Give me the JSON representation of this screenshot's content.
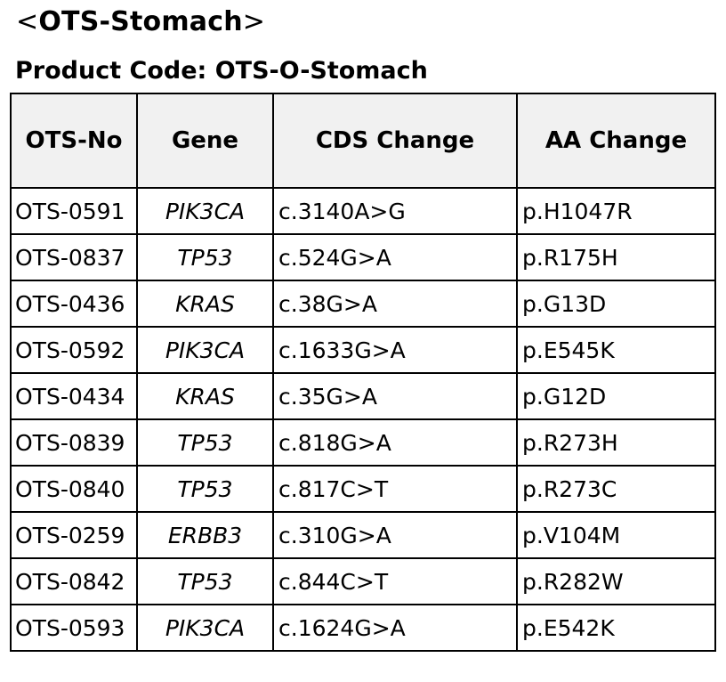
{
  "title": {
    "open_bracket": "<",
    "text": "OTS-Stomach",
    "close_bracket": ">"
  },
  "product_code": "Product Code: OTS-O-Stomach",
  "table": {
    "headers": [
      "OTS-No",
      "Gene",
      "CDS Change",
      "AA Change"
    ],
    "rows": [
      [
        "OTS-0591",
        "PIK3CA",
        "c.3140A>G",
        "p.H1047R"
      ],
      [
        "OTS-0837",
        "TP53",
        "c.524G>A",
        "p.R175H"
      ],
      [
        "OTS-0436",
        "KRAS",
        "c.38G>A",
        "p.G13D"
      ],
      [
        "OTS-0592",
        "PIK3CA",
        "c.1633G>A",
        "p.E545K"
      ],
      [
        "OTS-0434",
        "KRAS",
        "c.35G>A",
        "p.G12D"
      ],
      [
        "OTS-0839",
        "TP53",
        "c.818G>A",
        "p.R273H"
      ],
      [
        "OTS-0840",
        "TP53",
        "c.817C>T",
        "p.R273C"
      ],
      [
        "OTS-0259",
        "ERBB3",
        "c.310G>A",
        "p.V104M"
      ],
      [
        "OTS-0842",
        "TP53",
        "c.844C>T",
        "p.R282W"
      ],
      [
        "OTS-0593",
        "PIK3CA",
        "c.1624G>A",
        "p.E542K"
      ]
    ]
  },
  "colors": {
    "header_background": "#f1f1f1",
    "border": "#000000",
    "text": "#000000"
  }
}
